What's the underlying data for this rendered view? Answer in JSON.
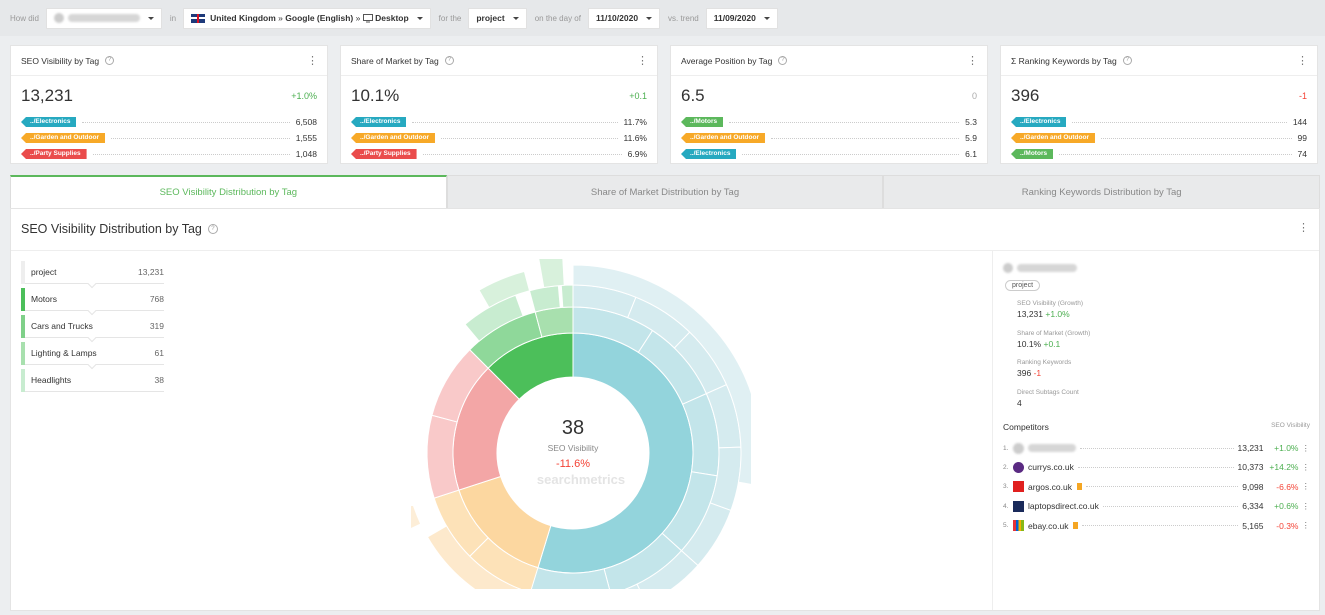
{
  "topbar": {
    "how_did": "How did",
    "domain_label": "amazon.co.uk",
    "in": "in",
    "market": "United Kingdom",
    "sep1": "»",
    "engine": "Google (English)",
    "sep2": "»",
    "device": "Desktop",
    "for_the": "for the",
    "scope": "project",
    "on_day": "on the day of",
    "date": "11/10/2020",
    "vs_trend": "vs. trend",
    "compare_date": "11/09/2020"
  },
  "cards": [
    {
      "title": "SEO Visibility by Tag",
      "value": "13,231",
      "change": "+1.0%",
      "change_type": "pos",
      "rows": [
        {
          "tag": "../Electronics",
          "color": "#26a9c0",
          "num": "6,508"
        },
        {
          "tag": "../Garden and Outdoor",
          "color": "#f7a928",
          "num": "1,555"
        },
        {
          "tag": "../Party Supplies",
          "color": "#ea4c4c",
          "num": "1,048"
        }
      ]
    },
    {
      "title": "Share of Market by Tag",
      "value": "10.1%",
      "change": "+0.1",
      "change_type": "pos",
      "rows": [
        {
          "tag": "../Electronics",
          "color": "#26a9c0",
          "num": "11.7%"
        },
        {
          "tag": "../Garden and Outdoor",
          "color": "#f7a928",
          "num": "11.6%"
        },
        {
          "tag": "../Party Supplies",
          "color": "#ea4c4c",
          "num": "6.9%"
        }
      ]
    },
    {
      "title": "Average Position by Tag",
      "value": "6.5",
      "change": "0",
      "change_type": "neu",
      "rows": [
        {
          "tag": "../Motors",
          "color": "#5cb85c",
          "num": "5.3"
        },
        {
          "tag": "../Garden and Outdoor",
          "color": "#f7a928",
          "num": "5.9"
        },
        {
          "tag": "../Electronics",
          "color": "#26a9c0",
          "num": "6.1"
        }
      ]
    },
    {
      "title": "Σ Ranking Keywords by Tag",
      "value": "396",
      "change": "-1",
      "change_type": "neg",
      "rows": [
        {
          "tag": "../Electronics",
          "color": "#26a9c0",
          "num": "144"
        },
        {
          "tag": "../Garden and Outdoor",
          "color": "#f7a928",
          "num": "99"
        },
        {
          "tag": "../Motors",
          "color": "#5cb85c",
          "num": "74"
        }
      ]
    }
  ],
  "tabs": [
    "SEO Visibility Distribution by Tag",
    "Share of Market Distribution by Tag",
    "Ranking Keywords Distribution by Tag"
  ],
  "panel": {
    "title": "SEO Visibility Distribution by Tag"
  },
  "tree": [
    {
      "label": "project",
      "value": "13,231",
      "color": "#eeeeee"
    },
    {
      "label": "Motors",
      "value": "768",
      "color": "#4cbf5a"
    },
    {
      "label": "Cars and Trucks",
      "value": "319",
      "color": "#7fd089"
    },
    {
      "label": "Lighting & Lamps",
      "value": "61",
      "color": "#a8e0ae"
    },
    {
      "label": "Headlights",
      "value": "38",
      "color": "#c8ecd0"
    }
  ],
  "center": {
    "value": "38",
    "label": "SEO Visibility",
    "change": "-11.6%",
    "watermark": "searchmetrics"
  },
  "details": {
    "domain": "amazon.co.uk",
    "pill": "project",
    "stats": [
      {
        "label": "SEO Visibility (Growth)",
        "value": "13,231",
        "change": "+1.0%",
        "type": "pos"
      },
      {
        "label": "Share of Market (Growth)",
        "value": "10.1%",
        "change": "+0.1",
        "type": "pos"
      },
      {
        "label": "Ranking Keywords",
        "value": "396",
        "change": "-1",
        "type": "neg"
      },
      {
        "label": "Direct Subtags Count",
        "value": "4",
        "change": "",
        "type": "neu"
      }
    ]
  },
  "competitors": {
    "title": "Competitors",
    "column": "SEO Visibility",
    "rows": [
      {
        "idx": "1.",
        "name": "amazon.co.uk",
        "value": "13,231",
        "change": "+1.0%",
        "type": "pos",
        "icon": "blurred-icon",
        "bookmark": false
      },
      {
        "idx": "2.",
        "name": "currys.co.uk",
        "value": "10,373",
        "change": "+14.2%",
        "type": "pos",
        "icon": "currys-icon",
        "bookmark": false
      },
      {
        "idx": "3.",
        "name": "argos.co.uk",
        "value": "9,098",
        "change": "-6.6%",
        "type": "neg",
        "icon": "argos-icon",
        "bookmark": true
      },
      {
        "idx": "4.",
        "name": "laptopsdirect.co.uk",
        "value": "6,334",
        "change": "+0.6%",
        "type": "pos",
        "icon": "laptopsdirect-icon",
        "bookmark": false
      },
      {
        "idx": "5.",
        "name": "ebay.co.uk",
        "value": "5,165",
        "change": "-0.3%",
        "type": "neg",
        "icon": "ebay-icon",
        "bookmark": true
      }
    ]
  }
}
